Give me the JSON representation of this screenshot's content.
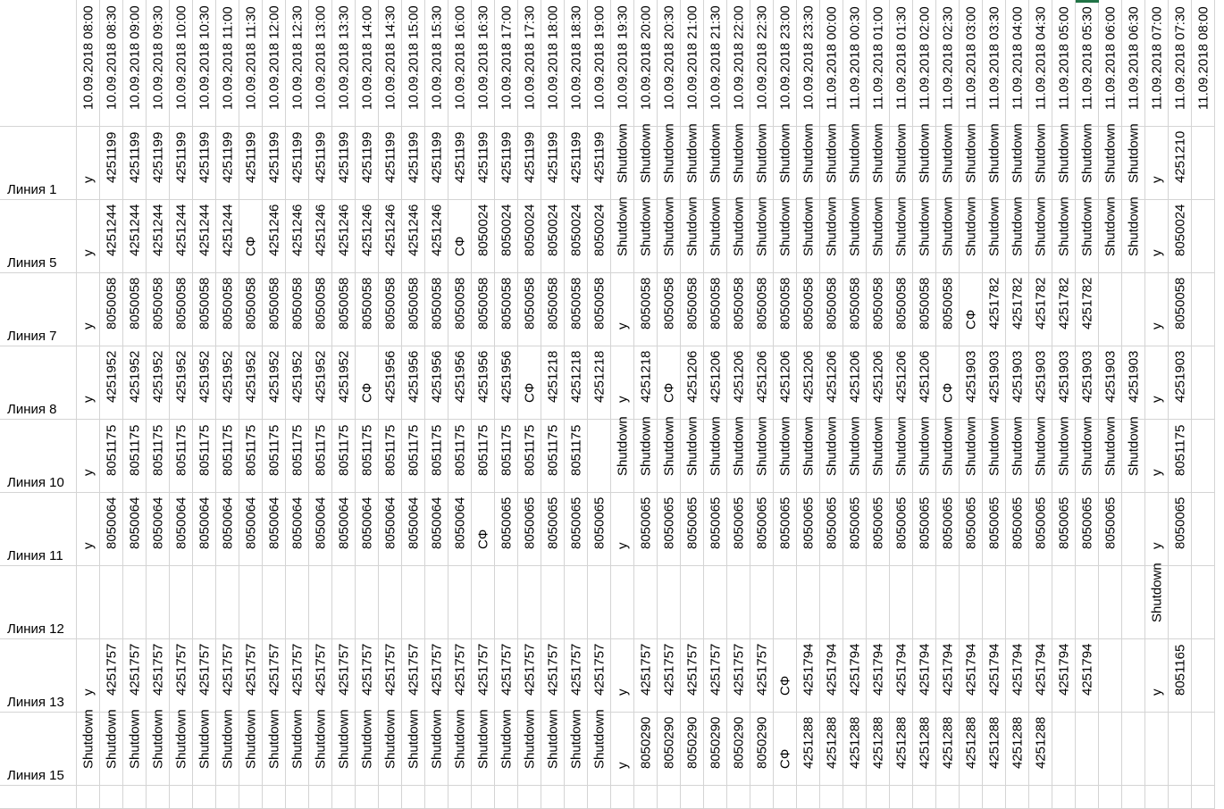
{
  "sheet": {
    "row_labels": [
      "Линия 1",
      "Линия 5",
      "Линия 7",
      "Линия 8",
      "Линия 10",
      "Линия 11",
      "Линия 12",
      "Линия 13",
      "Линия 15"
    ],
    "columns": [
      {
        "header": "10.09.2018 08:00",
        "values": [
          "у",
          "у",
          "у",
          "у",
          "у",
          "у",
          "",
          "у",
          "Shutdown"
        ]
      },
      {
        "header": "10.09.2018 08:30",
        "values": [
          "4251199",
          "4251244",
          "8050058",
          "4251952",
          "8051175",
          "8050064",
          "",
          "4251757",
          "Shutdown"
        ]
      },
      {
        "header": "10.09.2018 09:00",
        "values": [
          "4251199",
          "4251244",
          "8050058",
          "4251952",
          "8051175",
          "8050064",
          "",
          "4251757",
          "Shutdown"
        ]
      },
      {
        "header": "10.09.2018 09:30",
        "values": [
          "4251199",
          "4251244",
          "8050058",
          "4251952",
          "8051175",
          "8050064",
          "",
          "4251757",
          "Shutdown"
        ]
      },
      {
        "header": "10.09.2018 10:00",
        "values": [
          "4251199",
          "4251244",
          "8050058",
          "4251952",
          "8051175",
          "8050064",
          "",
          "4251757",
          "Shutdown"
        ]
      },
      {
        "header": "10.09.2018 10:30",
        "values": [
          "4251199",
          "4251244",
          "8050058",
          "4251952",
          "8051175",
          "8050064",
          "",
          "4251757",
          "Shutdown"
        ]
      },
      {
        "header": "10.09.2018 11:00",
        "values": [
          "4251199",
          "4251244",
          "8050058",
          "4251952",
          "8051175",
          "8050064",
          "",
          "4251757",
          "Shutdown"
        ]
      },
      {
        "header": "10.09.2018 11:30",
        "values": [
          "4251199",
          "СФ",
          "8050058",
          "4251952",
          "8051175",
          "8050064",
          "",
          "4251757",
          "Shutdown"
        ]
      },
      {
        "header": "10.09.2018 12:00",
        "values": [
          "4251199",
          "4251246",
          "8050058",
          "4251952",
          "8051175",
          "8050064",
          "",
          "4251757",
          "Shutdown"
        ]
      },
      {
        "header": "10.09.2018 12:30",
        "values": [
          "4251199",
          "4251246",
          "8050058",
          "4251952",
          "8051175",
          "8050064",
          "",
          "4251757",
          "Shutdown"
        ]
      },
      {
        "header": "10.09.2018 13:00",
        "values": [
          "4251199",
          "4251246",
          "8050058",
          "4251952",
          "8051175",
          "8050064",
          "",
          "4251757",
          "Shutdown"
        ]
      },
      {
        "header": "10.09.2018 13:30",
        "values": [
          "4251199",
          "4251246",
          "8050058",
          "4251952",
          "8051175",
          "8050064",
          "",
          "4251757",
          "Shutdown"
        ]
      },
      {
        "header": "10.09.2018 14:00",
        "values": [
          "4251199",
          "4251246",
          "8050058",
          "СФ",
          "8051175",
          "8050064",
          "",
          "4251757",
          "Shutdown"
        ]
      },
      {
        "header": "10.09.2018 14:30",
        "values": [
          "4251199",
          "4251246",
          "8050058",
          "4251956",
          "8051175",
          "8050064",
          "",
          "4251757",
          "Shutdown"
        ]
      },
      {
        "header": "10.09.2018 15:00",
        "values": [
          "4251199",
          "4251246",
          "8050058",
          "4251956",
          "8051175",
          "8050064",
          "",
          "4251757",
          "Shutdown"
        ]
      },
      {
        "header": "10.09.2018 15:30",
        "values": [
          "4251199",
          "4251246",
          "8050058",
          "4251956",
          "8051175",
          "8050064",
          "",
          "4251757",
          "Shutdown"
        ]
      },
      {
        "header": "10.09.2018 16:00",
        "values": [
          "4251199",
          "СФ",
          "8050058",
          "4251956",
          "8051175",
          "8050064",
          "",
          "4251757",
          "Shutdown"
        ]
      },
      {
        "header": "10.09.2018 16:30",
        "values": [
          "4251199",
          "8050024",
          "8050058",
          "4251956",
          "8051175",
          "СФ",
          "",
          "4251757",
          "Shutdown"
        ]
      },
      {
        "header": "10.09.2018 17:00",
        "values": [
          "4251199",
          "8050024",
          "8050058",
          "4251956",
          "8051175",
          "8050065",
          "",
          "4251757",
          "Shutdown"
        ]
      },
      {
        "header": "10.09.2018 17:30",
        "values": [
          "4251199",
          "8050024",
          "8050058",
          "СФ",
          "8051175",
          "8050065",
          "",
          "4251757",
          "Shutdown"
        ]
      },
      {
        "header": "10.09.2018 18:00",
        "values": [
          "4251199",
          "8050024",
          "8050058",
          "4251218",
          "8051175",
          "8050065",
          "",
          "4251757",
          "Shutdown"
        ]
      },
      {
        "header": "10.09.2018 18:30",
        "values": [
          "4251199",
          "8050024",
          "8050058",
          "4251218",
          "8051175",
          "8050065",
          "",
          "4251757",
          "Shutdown"
        ]
      },
      {
        "header": "10.09.2018 19:00",
        "values": [
          "4251199",
          "8050024",
          "8050058",
          "4251218",
          "",
          "8050065",
          "",
          "4251757",
          "Shutdown"
        ]
      },
      {
        "header": "10.09.2018 19:30",
        "values": [
          "Shutdown",
          "Shutdown",
          "у",
          "у",
          "Shutdown",
          "у",
          "",
          "у",
          "у"
        ]
      },
      {
        "header": "10.09.2018 20:00",
        "values": [
          "Shutdown",
          "Shutdown",
          "8050058",
          "4251218",
          "Shutdown",
          "8050065",
          "",
          "4251757",
          "8050290"
        ]
      },
      {
        "header": "10.09.2018 20:30",
        "values": [
          "Shutdown",
          "Shutdown",
          "8050058",
          "СФ",
          "Shutdown",
          "8050065",
          "",
          "4251757",
          "8050290"
        ]
      },
      {
        "header": "10.09.2018 21:00",
        "values": [
          "Shutdown",
          "Shutdown",
          "8050058",
          "4251206",
          "Shutdown",
          "8050065",
          "",
          "4251757",
          "8050290"
        ]
      },
      {
        "header": "10.09.2018 21:30",
        "values": [
          "Shutdown",
          "Shutdown",
          "8050058",
          "4251206",
          "Shutdown",
          "8050065",
          "",
          "4251757",
          "8050290"
        ]
      },
      {
        "header": "10.09.2018 22:00",
        "values": [
          "Shutdown",
          "Shutdown",
          "8050058",
          "4251206",
          "Shutdown",
          "8050065",
          "",
          "4251757",
          "8050290"
        ]
      },
      {
        "header": "10.09.2018 22:30",
        "values": [
          "Shutdown",
          "Shutdown",
          "8050058",
          "4251206",
          "Shutdown",
          "8050065",
          "",
          "4251757",
          "8050290"
        ]
      },
      {
        "header": "10.09.2018 23:00",
        "values": [
          "Shutdown",
          "Shutdown",
          "8050058",
          "4251206",
          "Shutdown",
          "8050065",
          "",
          "СФ",
          "СФ"
        ]
      },
      {
        "header": "10.09.2018 23:30",
        "values": [
          "Shutdown",
          "Shutdown",
          "8050058",
          "4251206",
          "Shutdown",
          "8050065",
          "",
          "4251794",
          "4251288"
        ]
      },
      {
        "header": "11.09.2018 00:00",
        "values": [
          "Shutdown",
          "Shutdown",
          "8050058",
          "4251206",
          "Shutdown",
          "8050065",
          "",
          "4251794",
          "4251288"
        ]
      },
      {
        "header": "11.09.2018 00:30",
        "values": [
          "Shutdown",
          "Shutdown",
          "8050058",
          "4251206",
          "Shutdown",
          "8050065",
          "",
          "4251794",
          "4251288"
        ]
      },
      {
        "header": "11.09.2018 01:00",
        "values": [
          "Shutdown",
          "Shutdown",
          "8050058",
          "4251206",
          "Shutdown",
          "8050065",
          "",
          "4251794",
          "4251288"
        ]
      },
      {
        "header": "11.09.2018 01:30",
        "values": [
          "Shutdown",
          "Shutdown",
          "8050058",
          "4251206",
          "Shutdown",
          "8050065",
          "",
          "4251794",
          "4251288"
        ]
      },
      {
        "header": "11.09.2018 02:00",
        "values": [
          "Shutdown",
          "Shutdown",
          "8050058",
          "4251206",
          "Shutdown",
          "8050065",
          "",
          "4251794",
          "4251288"
        ]
      },
      {
        "header": "11.09.2018 02:30",
        "values": [
          "Shutdown",
          "Shutdown",
          "8050058",
          "СФ",
          "Shutdown",
          "8050065",
          "",
          "4251794",
          "4251288"
        ]
      },
      {
        "header": "11.09.2018 03:00",
        "values": [
          "Shutdown",
          "Shutdown",
          "СФ",
          "4251903",
          "Shutdown",
          "8050065",
          "",
          "4251794",
          "4251288"
        ]
      },
      {
        "header": "11.09.2018 03:30",
        "values": [
          "Shutdown",
          "Shutdown",
          "4251782",
          "4251903",
          "Shutdown",
          "8050065",
          "",
          "4251794",
          "4251288"
        ]
      },
      {
        "header": "11.09.2018 04:00",
        "values": [
          "Shutdown",
          "Shutdown",
          "4251782",
          "4251903",
          "Shutdown",
          "8050065",
          "",
          "4251794",
          "4251288"
        ]
      },
      {
        "header": "11.09.2018 04:30",
        "values": [
          "Shutdown",
          "Shutdown",
          "4251782",
          "4251903",
          "Shutdown",
          "8050065",
          "",
          "4251794",
          "4251288"
        ]
      },
      {
        "header": "11.09.2018 05:00",
        "values": [
          "Shutdown",
          "Shutdown",
          "4251782",
          "4251903",
          "Shutdown",
          "8050065",
          "",
          "4251794",
          ""
        ]
      },
      {
        "header": "11.09.2018 05:30",
        "values": [
          "Shutdown",
          "Shutdown",
          "4251782",
          "4251903",
          "Shutdown",
          "8050065",
          "",
          "4251794",
          ""
        ]
      },
      {
        "header": "11.09.2018 06:00",
        "values": [
          "Shutdown",
          "Shutdown",
          "",
          "4251903",
          "Shutdown",
          "8050065",
          "",
          "",
          ""
        ]
      },
      {
        "header": "11.09.2018 06:30",
        "values": [
          "Shutdown",
          "Shutdown",
          "",
          "4251903",
          "Shutdown",
          "",
          "",
          "",
          ""
        ]
      },
      {
        "header": "11.09.2018 07:00",
        "values": [
          "у",
          "у",
          "у",
          "у",
          "у",
          "у",
          "Shutdown",
          "у",
          ""
        ]
      },
      {
        "header": "11.09.2018 07:30",
        "values": [
          "4251210",
          "8050024",
          "8050058",
          "4251903",
          "8051175",
          "8050065",
          "",
          "8051165",
          ""
        ]
      },
      {
        "header": "11.09.2018 08:00",
        "values": [
          "",
          "",
          "",
          "",
          "",
          "",
          "",
          "",
          ""
        ]
      }
    ]
  }
}
